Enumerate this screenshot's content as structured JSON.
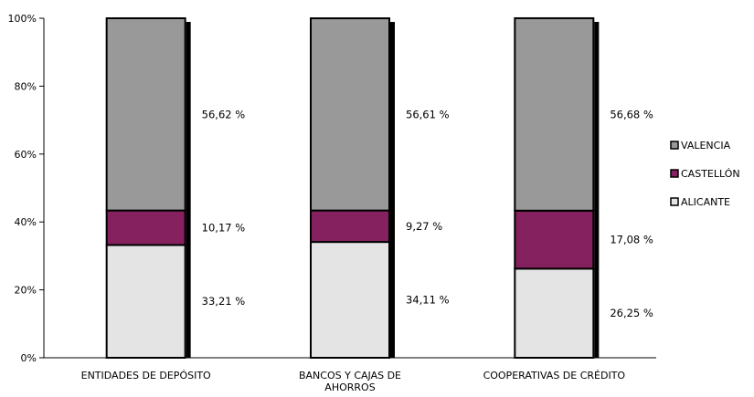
{
  "chart_data": {
    "type": "bar",
    "stacked": true,
    "categories": [
      "ENTIDADES DE DEPÓSITO",
      "BANCOS Y CAJAS DE AHORROS",
      "COOPERATIVAS DE CRÉDITO"
    ],
    "series": [
      {
        "name": "ALICANTE",
        "values": [
          33.21,
          34.11,
          26.25
        ],
        "labels": [
          "33,21 %",
          "34,11 %",
          "26,25 %"
        ],
        "color": "#e4e4e4"
      },
      {
        "name": "CASTELLÓN",
        "values": [
          10.17,
          9.27,
          17.08
        ],
        "labels": [
          "10,17 %",
          "9,27 %",
          "17,08 %"
        ],
        "color": "#84215e"
      },
      {
        "name": "VALENCIA",
        "values": [
          56.62,
          56.61,
          56.68
        ],
        "labels": [
          "56,62 %",
          "56,61 %",
          "56,68 %"
        ],
        "color": "#999999"
      }
    ],
    "y_ticks": [
      "0%",
      "20%",
      "40%",
      "60%",
      "80%",
      "100%"
    ],
    "ylim": [
      0,
      100
    ],
    "legend_position": "right",
    "grid": false
  }
}
